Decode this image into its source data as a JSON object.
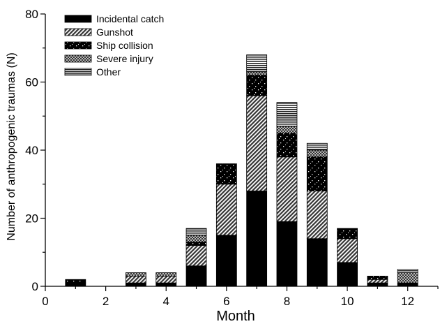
{
  "chart_data": {
    "type": "bar",
    "stacked": true,
    "xlabel": "Month",
    "ylabel": "Number of anthropogenic traumas (N)",
    "xlim": [
      0,
      13
    ],
    "ylim": [
      0,
      80
    ],
    "xticks": [
      0,
      2,
      4,
      6,
      8,
      10,
      12
    ],
    "yticks": [
      0,
      20,
      40,
      60,
      80
    ],
    "grid": false,
    "legend_position": "top-left",
    "x": [
      1,
      2,
      3,
      4,
      5,
      6,
      7,
      8,
      9,
      10,
      11,
      12
    ],
    "series": [
      {
        "name": "Incidental catch",
        "pattern": "solid-black",
        "values": [
          1,
          0,
          1,
          1,
          6,
          15,
          28,
          19,
          14,
          7,
          1,
          1
        ]
      },
      {
        "name": "Gunshot",
        "pattern": "diagonal-hatch",
        "values": [
          0,
          0,
          2,
          2,
          6,
          15,
          28,
          19,
          14,
          7,
          1,
          0
        ]
      },
      {
        "name": "Ship collision",
        "pattern": "black-speckled",
        "values": [
          1,
          0,
          0,
          0,
          1,
          6,
          6,
          7,
          10,
          3,
          1,
          0
        ]
      },
      {
        "name": "Severe injury",
        "pattern": "crosshatch",
        "values": [
          0,
          0,
          1,
          1,
          2,
          0,
          1,
          2,
          2,
          0,
          0,
          3
        ]
      },
      {
        "name": "Other",
        "pattern": "horizontal-lines",
        "values": [
          0,
          0,
          0,
          0,
          2,
          0,
          5,
          7,
          2,
          0,
          0,
          1
        ]
      }
    ]
  }
}
